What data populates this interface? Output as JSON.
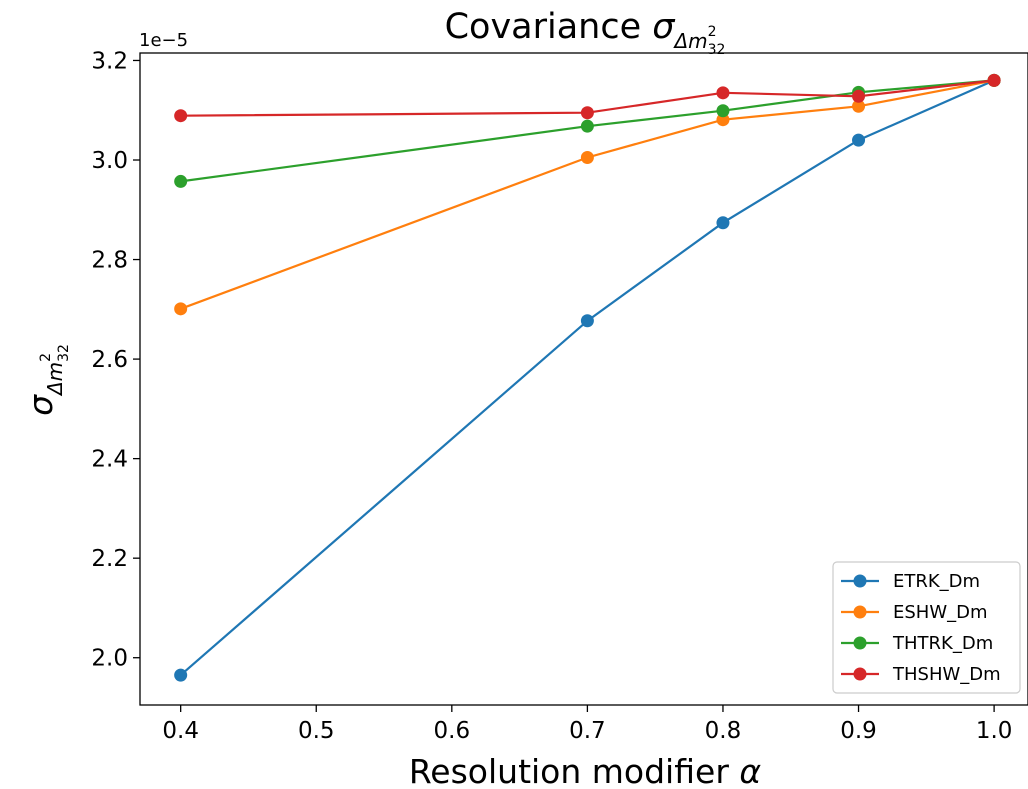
{
  "chart_data": {
    "type": "line",
    "title": {
      "prefix": "Covariance ",
      "symbol": "σ",
      "sub": "Δm",
      "sub_sup": "2",
      "sub_sub": "32"
    },
    "xlabel": {
      "text": "Resolution modifier ",
      "symbol": "α"
    },
    "ylabel": {
      "symbol": "σ",
      "sub": "Δm",
      "sub_sup": "2",
      "sub_sub": "32"
    },
    "y_offset_label": "1e−5",
    "x": [
      0.4,
      0.7,
      0.8,
      0.9,
      1.0
    ],
    "xlim": [
      0.37,
      1.025
    ],
    "ylim": [
      1.905,
      3.215
    ],
    "x_ticks": [
      0.4,
      0.5,
      0.6,
      0.7,
      0.8,
      0.9,
      1.0
    ],
    "x_tick_labels": [
      "0.4",
      "0.5",
      "0.6",
      "0.7",
      "0.8",
      "0.9",
      "1.0"
    ],
    "y_ticks": [
      2.0,
      2.2,
      2.4,
      2.6,
      2.8,
      3.0,
      3.2
    ],
    "y_tick_labels": [
      "2.0",
      "2.2",
      "2.4",
      "2.6",
      "2.8",
      "3.0",
      "3.2"
    ],
    "grid": false,
    "legend_position": "lower-right",
    "series": [
      {
        "name": "ETRK_Dm",
        "color": "#1f77b4",
        "values": [
          1.965,
          2.677,
          2.874,
          3.04,
          3.16
        ]
      },
      {
        "name": "ESHW_Dm",
        "color": "#ff7f0e",
        "values": [
          2.701,
          3.005,
          3.081,
          3.108,
          3.16
        ]
      },
      {
        "name": "THTRK_Dm",
        "color": "#2ca02c",
        "values": [
          2.957,
          3.068,
          3.099,
          3.136,
          3.16
        ]
      },
      {
        "name": "THSHW_Dm",
        "color": "#d62728",
        "values": [
          3.089,
          3.095,
          3.135,
          3.128,
          3.16
        ]
      }
    ]
  }
}
